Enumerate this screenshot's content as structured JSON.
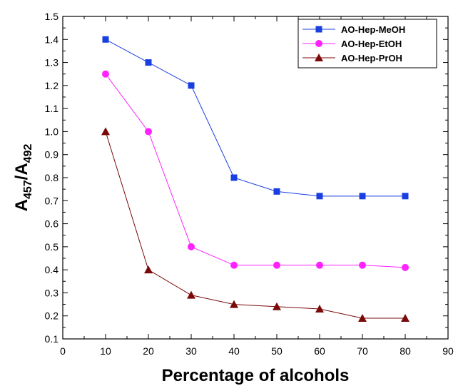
{
  "chart_data": {
    "type": "line",
    "title": "",
    "xlabel": "Percentage of alcohols",
    "ylabel": {
      "main": "A",
      "sub1": "457",
      "sep": "/A",
      "sub2": "492"
    },
    "xlim": [
      0,
      90
    ],
    "ylim": [
      0.1,
      1.5
    ],
    "x_ticks": [
      0,
      10,
      20,
      30,
      40,
      50,
      60,
      70,
      80,
      90
    ],
    "y_ticks": [
      0.1,
      0.2,
      0.3,
      0.4,
      0.5,
      0.6,
      0.7,
      0.8,
      0.9,
      1.0,
      1.1,
      1.2,
      1.3,
      1.4,
      1.5
    ],
    "grid": false,
    "legend_position": "top-right",
    "x": [
      10,
      20,
      30,
      40,
      50,
      60,
      70,
      80
    ],
    "series": [
      {
        "name": "AO-Hep-MeOH",
        "values": [
          1.4,
          1.3,
          1.2,
          0.8,
          0.74,
          0.72,
          0.72,
          0.72
        ],
        "color": "#1a3fe0",
        "marker": "square"
      },
      {
        "name": "AO-Hep-EtOH",
        "values": [
          1.25,
          1.0,
          0.5,
          0.42,
          0.42,
          0.42,
          0.42,
          0.41
        ],
        "color": "#ff22ff",
        "marker": "circle"
      },
      {
        "name": "AO-Hep-PrOH",
        "values": [
          1.0,
          0.4,
          0.29,
          0.25,
          0.24,
          0.23,
          0.19,
          0.19
        ],
        "color": "#7a0a0a",
        "marker": "triangle"
      }
    ]
  }
}
